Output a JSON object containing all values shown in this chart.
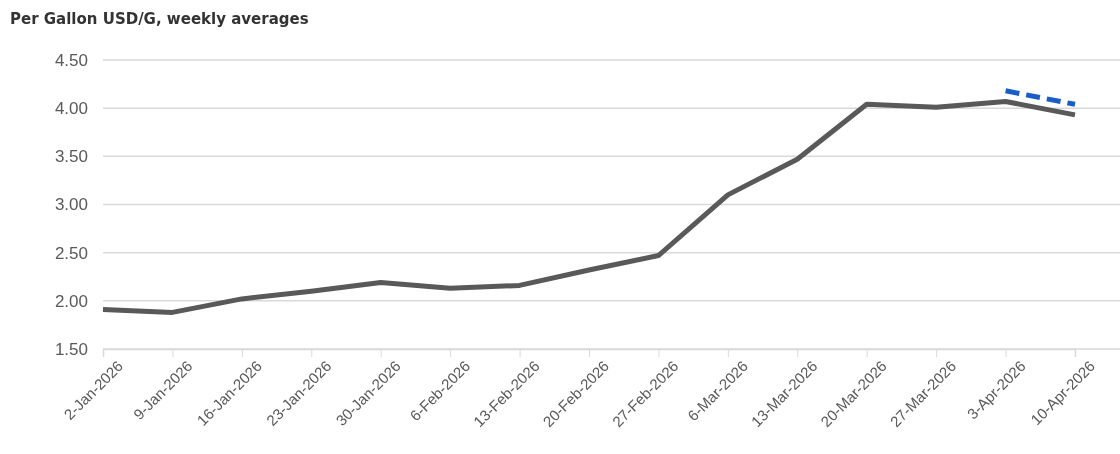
{
  "chart_data": {
    "type": "line",
    "title": "Per Gallon USD/G, weekly averages",
    "categories": [
      "2-Jan-2026",
      "9-Jan-2026",
      "16-Jan-2026",
      "23-Jan-2026",
      "30-Jan-2026",
      "6-Feb-2026",
      "13-Feb-2026",
      "20-Feb-2026",
      "27-Feb-2026",
      "6-Mar-2026",
      "13-Mar-2026",
      "20-Mar-2026",
      "27-Mar-2026",
      "3-Apr-2026",
      "10-Apr-2026"
    ],
    "series": [
      {
        "color": "#595959",
        "values": [
          1.91,
          1.88,
          2.02,
          2.1,
          2.19,
          2.13,
          2.16,
          2.32,
          2.47,
          3.1,
          3.47,
          4.04,
          4.01,
          4.07,
          3.93
        ]
      },
      {
        "color": "#1a5cc8",
        "line_style": "dashed",
        "values": [
          null,
          null,
          null,
          null,
          null,
          null,
          null,
          null,
          null,
          null,
          null,
          null,
          null,
          4.18,
          4.04
        ]
      }
    ],
    "ylim": [
      1.5,
      4.5
    ],
    "yticks": [
      {
        "value": 1.5,
        "label": "1.50"
      },
      {
        "value": 2,
        "label": "2.00"
      },
      {
        "value": 2.5,
        "label": "2.50"
      },
      {
        "value": 3,
        "label": "3.00"
      },
      {
        "value": 3.5,
        "label": "3.50"
      },
      {
        "value": 4,
        "label": "4.00"
      },
      {
        "value": 4.5,
        "label": "4.50"
      }
    ],
    "grid": "y"
  }
}
